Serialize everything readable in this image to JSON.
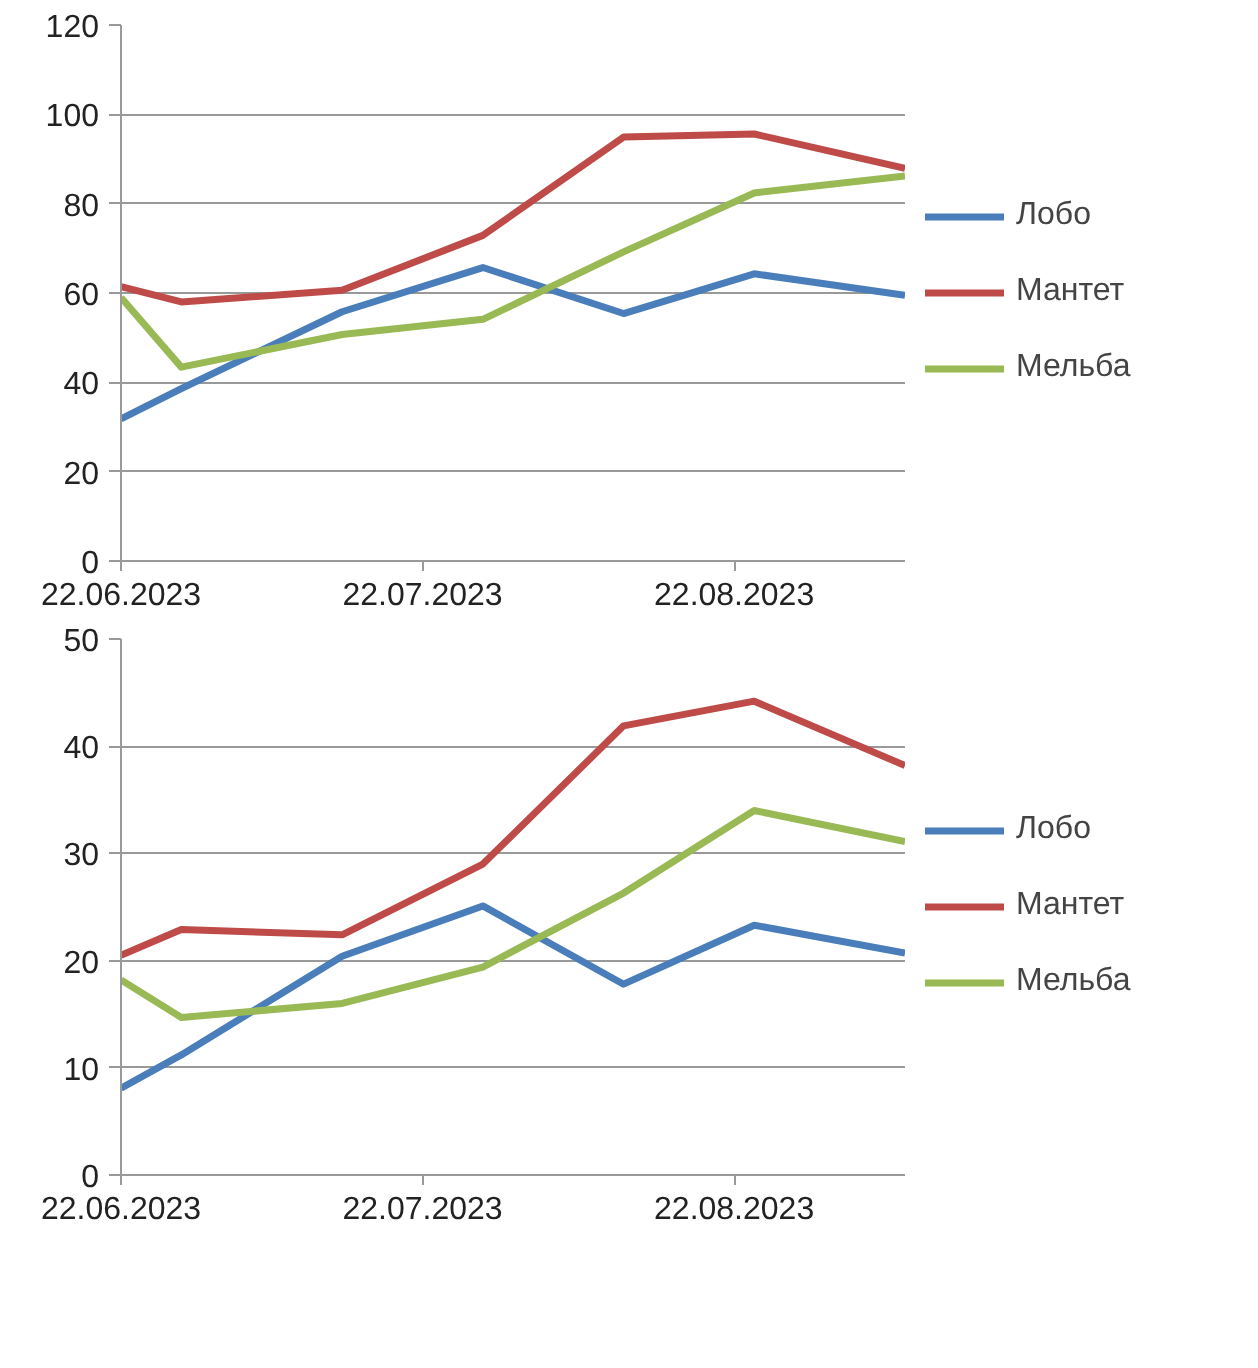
{
  "chart_data": [
    {
      "type": "line",
      "x": [
        "2023-06-22",
        "2023-06-28",
        "2023-07-14",
        "2023-07-28",
        "2023-08-11",
        "2023-08-24",
        "2023-09-08"
      ],
      "series": [
        {
          "name": "Лобо",
          "color": "#4a7ebb",
          "values": [
            31.8,
            38.6,
            55.8,
            65.7,
            55.4,
            64.3,
            59.5
          ]
        },
        {
          "name": "Мантет",
          "color": "#be4b48",
          "values": [
            61.4,
            58,
            60.6,
            72.9,
            94.9,
            95.6,
            87.9
          ]
        },
        {
          "name": "Мельба",
          "color": "#98b954",
          "values": [
            59,
            43.4,
            50.7,
            54.1,
            69.2,
            82.4,
            86.2
          ]
        }
      ],
      "xlim": [
        "2023-06-22",
        "2023-09-08"
      ],
      "xticks": [
        {
          "value": "2023-06-22",
          "label": "22.06.2023"
        },
        {
          "value": "2023-07-22",
          "label": "22.07.2023"
        },
        {
          "value": "2023-08-22",
          "label": "22.08.2023"
        }
      ],
      "ylim": [
        0,
        120
      ],
      "yticks": [
        0,
        20,
        40,
        60,
        80,
        100,
        120
      ],
      "grid": "y",
      "legend": "right",
      "marker": "none",
      "line_style": "solid"
    },
    {
      "type": "line",
      "x": [
        "2023-06-22",
        "2023-06-28",
        "2023-07-14",
        "2023-07-28",
        "2023-08-11",
        "2023-08-24",
        "2023-09-08"
      ],
      "series": [
        {
          "name": "Лобо",
          "color": "#4a7ebb",
          "values": [
            8.1,
            11.2,
            20.4,
            25.1,
            17.8,
            23.3,
            20.7
          ]
        },
        {
          "name": "Мантет",
          "color": "#be4b48",
          "values": [
            20.5,
            22.9,
            22.4,
            29.0,
            41.9,
            44.2,
            38.2
          ]
        },
        {
          "name": "Мельба",
          "color": "#98b954",
          "values": [
            18.2,
            14.7,
            16.0,
            19.4,
            26.3,
            34.0,
            31.1
          ]
        }
      ],
      "xlim": [
        "2023-06-22",
        "2023-09-08"
      ],
      "xticks": [
        {
          "value": "2023-06-22",
          "label": "22.06.2023"
        },
        {
          "value": "2023-07-22",
          "label": "22.07.2023"
        },
        {
          "value": "2023-08-22",
          "label": "22.08.2023"
        }
      ],
      "ylim": [
        0,
        50
      ],
      "yticks": [
        0,
        10,
        20,
        30,
        40,
        50
      ],
      "grid": "y",
      "legend": "right",
      "marker": "none",
      "line_style": "solid"
    }
  ]
}
